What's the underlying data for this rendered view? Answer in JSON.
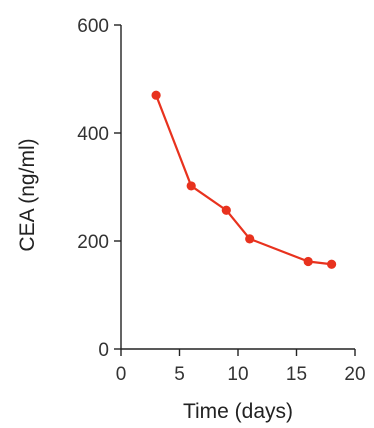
{
  "chart_data": {
    "type": "line",
    "title": "",
    "xlabel": "Time (days)",
    "ylabel": "CEA (ng/ml)",
    "xlim": [
      0,
      20
    ],
    "ylim": [
      0,
      600
    ],
    "xticks": [
      "0",
      "5",
      "10",
      "15",
      "20"
    ],
    "yticks": [
      "0",
      "200",
      "400",
      "600"
    ],
    "grid": false,
    "legend": "none",
    "series": [
      {
        "color": "#e8321e",
        "x": [
          3,
          6,
          9,
          11,
          16,
          18
        ],
        "y": [
          470,
          302,
          257,
          204,
          162,
          157
        ]
      }
    ]
  }
}
